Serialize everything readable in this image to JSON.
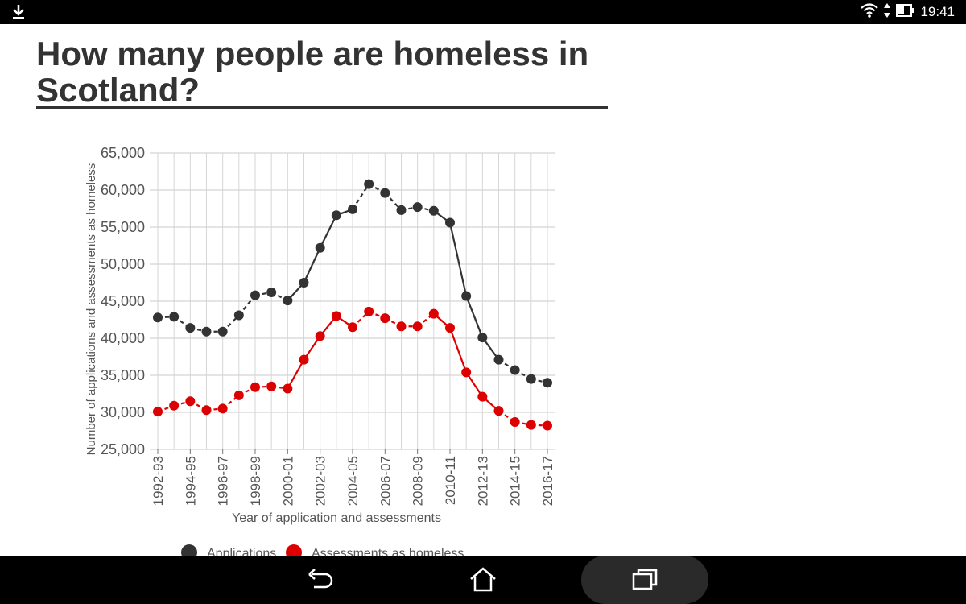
{
  "status_bar": {
    "time": "19:41",
    "icons": [
      "download-icon",
      "wifi-icon",
      "data-arrows-icon",
      "battery-icon"
    ],
    "background": "#000000"
  },
  "article": {
    "title": "How many people are homeless in Scotland?"
  },
  "chart_data": {
    "type": "line",
    "title": "",
    "xlabel": "Year of application and assessments",
    "ylabel": "Number of applications and assessments as homeless",
    "ylim": [
      25000,
      65000
    ],
    "yticks": [
      "65,000",
      "60,000",
      "55,000",
      "50,000",
      "45,000",
      "40,000",
      "35,000",
      "30,000",
      "25,000"
    ],
    "xtick_labels": [
      "1992-93",
      "1994-95",
      "1996-97",
      "1998-99",
      "2000-01",
      "2002-03",
      "2004-05",
      "2006-07",
      "2008-09",
      "2010-11",
      "2012-13",
      "2014-15",
      "2016-17"
    ],
    "grid": true,
    "legend_placement": "bottom",
    "series": [
      {
        "name": "Applications",
        "color": "#333333",
        "values": [
          42800,
          42900,
          41400,
          40900,
          40900,
          43100,
          45800,
          46200,
          45100,
          47500,
          52200,
          56600,
          57400,
          60800,
          59600,
          57300,
          57700,
          57200,
          55600,
          45700,
          40100,
          37100,
          35700,
          34500,
          34000
        ]
      },
      {
        "name": "Assessments as homeless",
        "color": "#dd0000",
        "values": [
          30100,
          30900,
          31500,
          30300,
          30500,
          32300,
          33400,
          33500,
          33200,
          37100,
          40300,
          43000,
          41500,
          43600,
          42700,
          41600,
          41600,
          43300,
          41400,
          35400,
          32100,
          30200,
          28700,
          28300,
          28200
        ]
      }
    ]
  },
  "nav_bar": {
    "buttons": [
      "back-icon",
      "home-icon",
      "recent-apps-icon"
    ]
  }
}
